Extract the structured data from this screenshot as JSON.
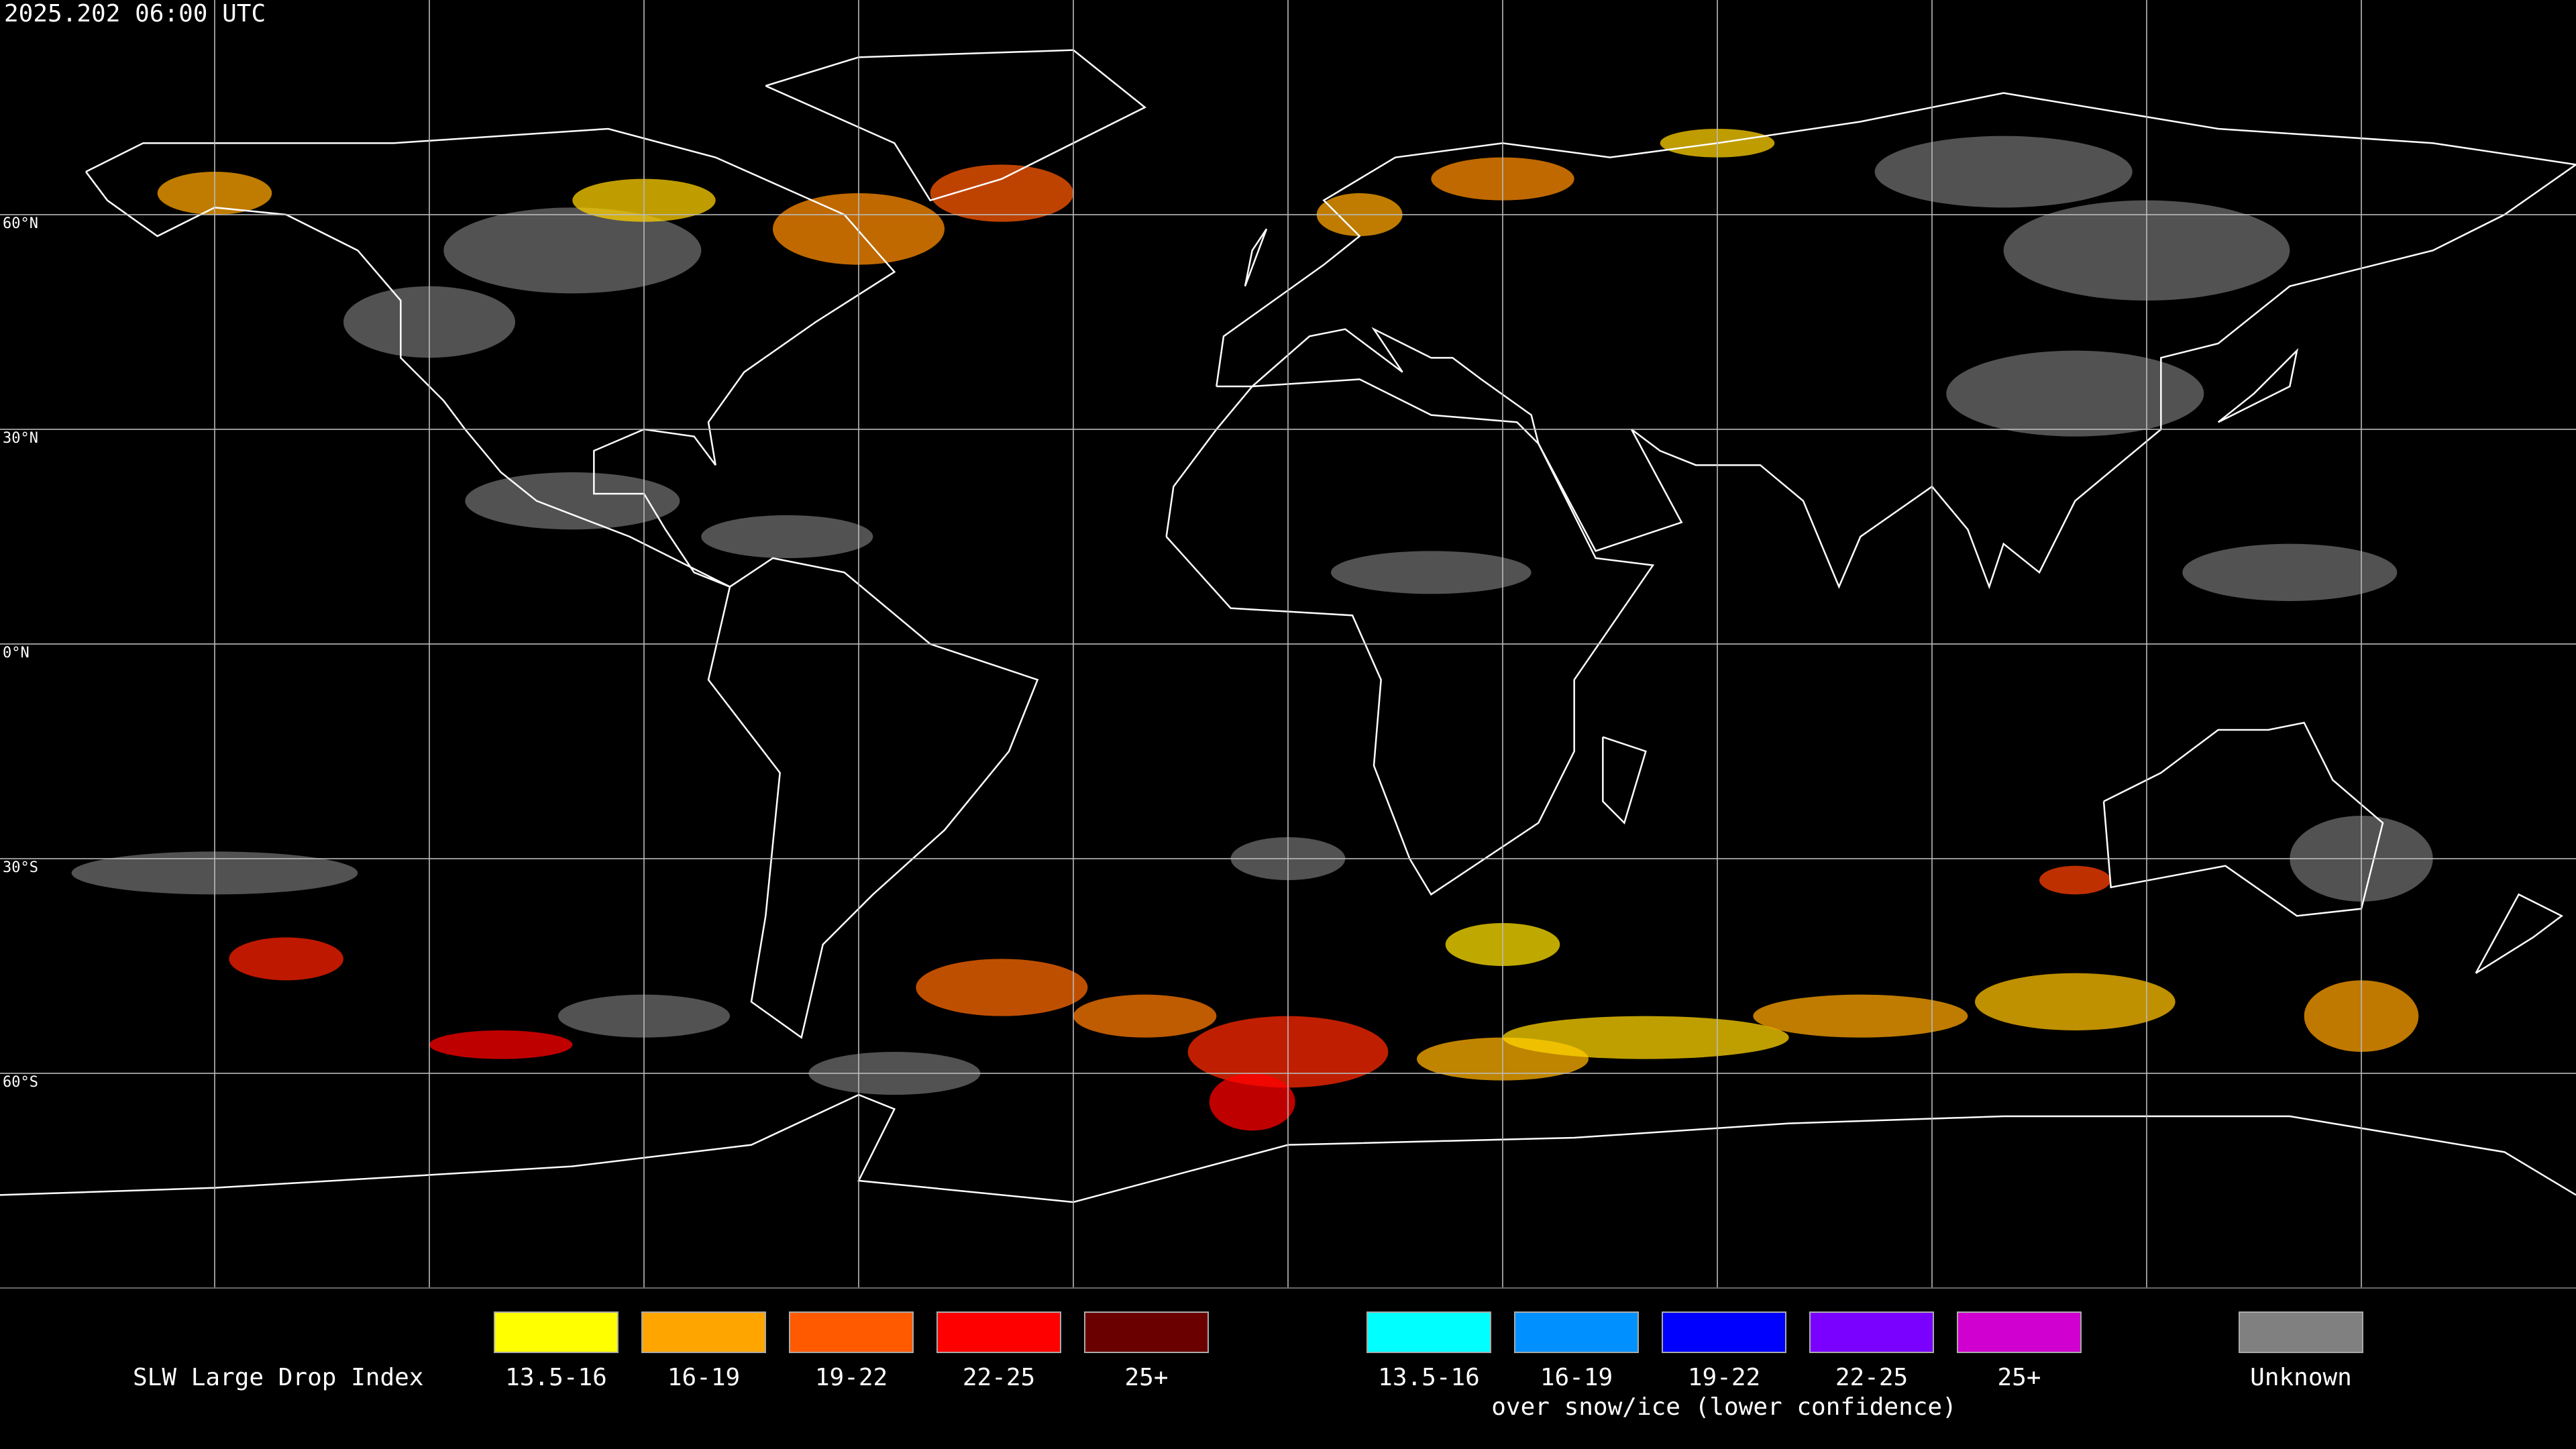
{
  "header": {
    "timestamp": "2025.202 06:00 UTC"
  },
  "map": {
    "latitude_labels": [
      "60°N",
      "30°N",
      "0°N",
      "30°S",
      "60°S"
    ]
  },
  "legend": {
    "title": "SLW Large Drop Index",
    "groups": [
      {
        "items": [
          {
            "label": "13.5-16",
            "color": "#ffff00"
          },
          {
            "label": "16-19",
            "color": "#ffa500"
          },
          {
            "label": "19-22",
            "color": "#ff5a00"
          },
          {
            "label": "22-25",
            "color": "#ff0000"
          },
          {
            "label": "25+",
            "color": "#6a0000"
          }
        ]
      },
      {
        "items": [
          {
            "label": "13.5-16",
            "color": "#00ffff"
          },
          {
            "label": "16-19",
            "color": "#0090ff"
          },
          {
            "label": "19-22",
            "color": "#0000ff"
          },
          {
            "label": "22-25",
            "color": "#7a00ff"
          },
          {
            "label": "25+",
            "color": "#d000d0"
          }
        ],
        "caption": "over snow/ice (lower confidence)"
      }
    ],
    "unknown": {
      "label": "Unknown",
      "color": "#808080"
    }
  }
}
